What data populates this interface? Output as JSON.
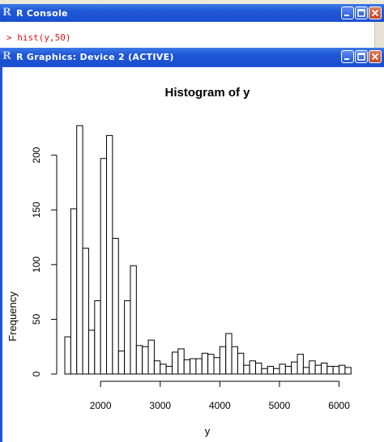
{
  "console": {
    "title": "R Console",
    "command": "> hist(y,50)"
  },
  "graphics": {
    "title": "R Graphics: Device 2 (ACTIVE)"
  },
  "chart_data": {
    "type": "bar",
    "title": "Histogram of y",
    "xlabel": "y",
    "ylabel": "Frequency",
    "bin_start": 1400,
    "bin_width": 100,
    "values": [
      34,
      151,
      227,
      115,
      40,
      67,
      197,
      218,
      124,
      21,
      67,
      99,
      26,
      25,
      31,
      12,
      9,
      7,
      20,
      23,
      13,
      14,
      14,
      19,
      18,
      15,
      25,
      37,
      25,
      19,
      8,
      12,
      10,
      5,
      7,
      5,
      9,
      7,
      11,
      18,
      6,
      12,
      8,
      10,
      7,
      7,
      8,
      6
    ],
    "xticks": [
      2000,
      3000,
      4000,
      5000,
      6000
    ],
    "yticks": [
      0,
      50,
      100,
      150,
      200
    ],
    "xlim": [
      1400,
      6200
    ],
    "ylim": [
      0,
      227
    ]
  }
}
